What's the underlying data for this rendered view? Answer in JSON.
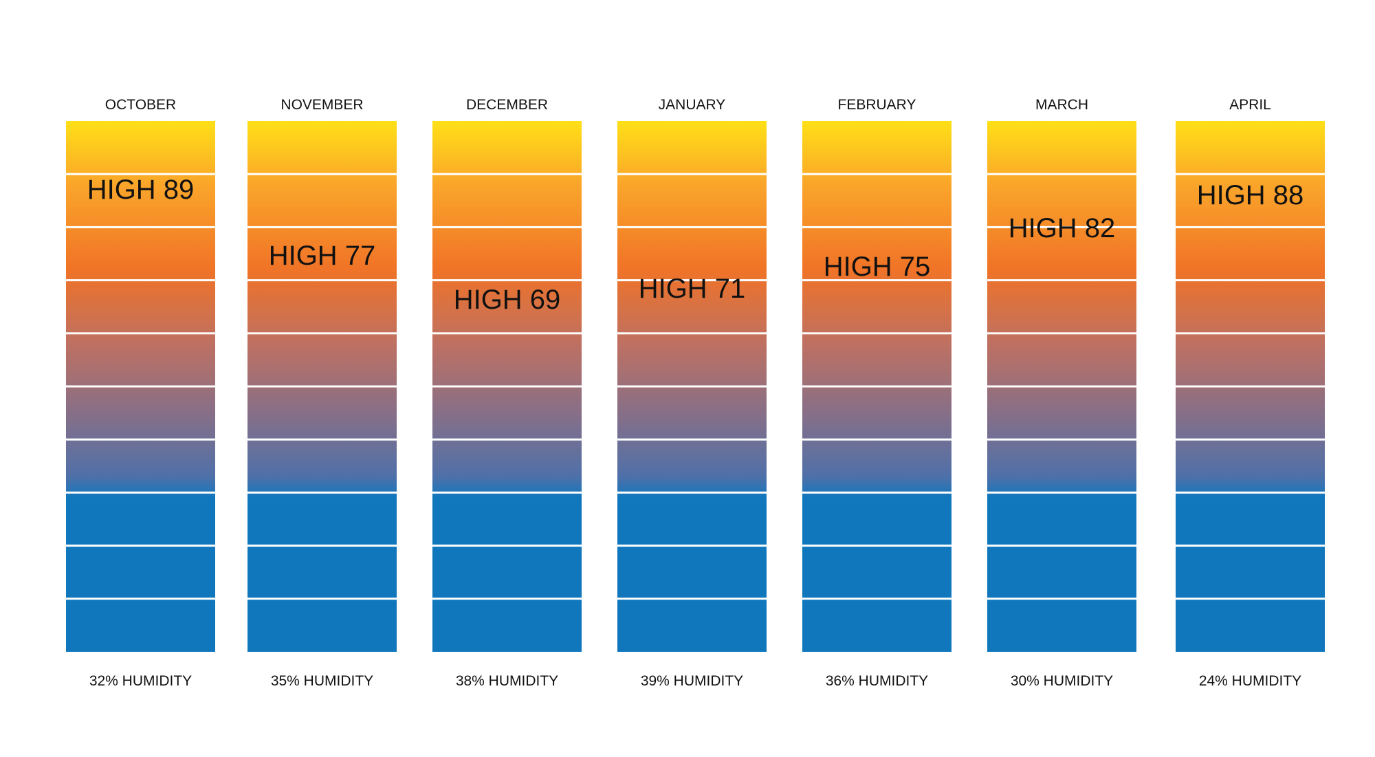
{
  "chart_data": {
    "type": "bar",
    "categories": [
      "OCTOBER",
      "NOVEMBER",
      "DECEMBER",
      "JANUARY",
      "FEBRUARY",
      "MARCH",
      "APRIL"
    ],
    "high_values": [
      89,
      77,
      69,
      71,
      75,
      82,
      88
    ],
    "humidity_values": [
      32,
      35,
      38,
      39,
      36,
      30,
      24
    ],
    "high_labels": [
      "HIGH 89",
      "HIGH 77",
      "HIGH 69",
      "HIGH 71",
      "HIGH 75",
      "HIGH 82",
      "HIGH 88"
    ],
    "humidity_labels": [
      "32% HUMIDITY",
      "35% HUMIDITY",
      "38% HUMIDITY",
      "39% HUMIDITY",
      "36% HUMIDITY",
      "30% HUMIDITY",
      "24% HUMIDITY"
    ],
    "segments_per_column": 10,
    "colors": {
      "gradient_top": "#FFE016",
      "gradient_mid_1": "#FAA52A",
      "gradient_mid_2": "#F07327",
      "gradient_mid_3": "#BE7062",
      "gradient_mid_4": "#836F8A",
      "gradient_mid_5": "#4F70A9",
      "gradient_bottom": "#1077BD",
      "segment_separator": "#FFFFFF",
      "text": "#111111"
    }
  }
}
